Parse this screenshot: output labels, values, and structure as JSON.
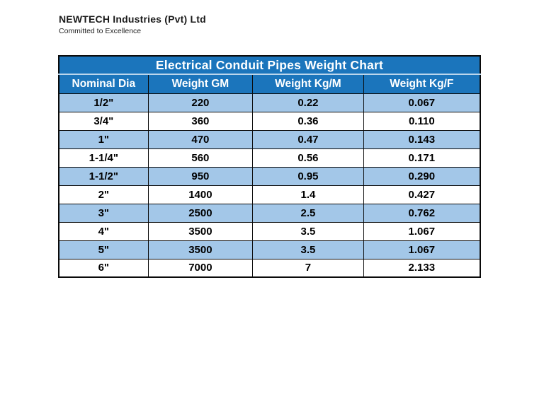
{
  "logo": {
    "company": "NEWTECH Industries (Pvt) Ltd",
    "tagline": "Committed to Excellence"
  },
  "table": {
    "title": "Electrical Conduit Pipes Weight Chart",
    "columns": [
      "Nominal Dia",
      "Weight GM",
      "Weight Kg/M",
      "Weight Kg/F"
    ],
    "column_widths_pct": [
      21.2,
      24.8,
      26.3,
      27.7
    ],
    "rows": [
      [
        "1/2\"",
        "220",
        "0.22",
        "0.067"
      ],
      [
        "3/4\"",
        "360",
        "0.36",
        "0.110"
      ],
      [
        "1\"",
        "470",
        "0.47",
        "0.143"
      ],
      [
        "1-1/4\"",
        "560",
        "0.56",
        "0.171"
      ],
      [
        "1-1/2\"",
        "950",
        "0.95",
        "0.290"
      ],
      [
        "2\"",
        "1400",
        "1.4",
        "0.427"
      ],
      [
        "3\"",
        "2500",
        "2.5",
        "0.762"
      ],
      [
        "4\"",
        "3500",
        "3.5",
        "1.067"
      ],
      [
        "5\"",
        "3500",
        "3.5",
        "1.067"
      ],
      [
        "6\"",
        "7000",
        "7",
        "2.133"
      ]
    ],
    "shaded_row_indexes": [
      0,
      2,
      4,
      6,
      8
    ],
    "colors": {
      "header_bg": "#1b75bc",
      "header_text": "#ffffff",
      "row_alt_bg": "#a3c7e8",
      "row_bg": "#ffffff",
      "body_text": "#000000",
      "border": "#0a0a0a"
    }
  }
}
